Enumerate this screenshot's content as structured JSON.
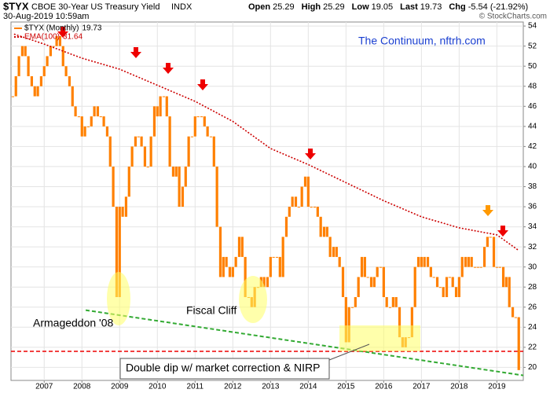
{
  "header": {
    "symbol": "$TYX",
    "name": "CBOE 30-Year US Treasury Yield",
    "exchange": "INDX",
    "date": "30-Aug-2019 10:59am",
    "stats": [
      {
        "label": "Open",
        "value": "25.29"
      },
      {
        "label": "High",
        "value": "25.29"
      },
      {
        "label": "Low",
        "value": "19.05"
      },
      {
        "label": "Last",
        "value": "19.73"
      },
      {
        "label": "Chg",
        "value": "-5.54 (-21.92%)"
      }
    ],
    "source": "© StockCharts.com"
  },
  "chart_data": {
    "type": "bar",
    "annotations": [
      "The Continuum, nftrh.com",
      "Armageddon '08",
      "Fiscal Cliff",
      "Double dip w/ market correction & NIRP"
    ],
    "xlim": [
      2006.12,
      2019.7
    ],
    "xticks": [
      2007,
      2008,
      2009,
      2010,
      2011,
      2012,
      2013,
      2014,
      2015,
      2016,
      2017,
      2018,
      2019
    ],
    "ylim": [
      18.7,
      54.4
    ],
    "yticks": [
      20,
      22,
      24,
      26,
      28,
      30,
      32,
      34,
      36,
      38,
      40,
      42,
      44,
      46,
      48,
      50,
      52,
      54
    ],
    "grid": true,
    "series": [
      {
        "name": "$TYX (Monthly)",
        "color": "#ff8000",
        "x": [
          2006.17,
          2006.25,
          2006.33,
          2006.42,
          2006.5,
          2006.58,
          2006.67,
          2006.75,
          2006.83,
          2006.92,
          2007.0,
          2007.08,
          2007.17,
          2007.25,
          2007.33,
          2007.42,
          2007.5,
          2007.58,
          2007.67,
          2007.75,
          2007.83,
          2007.92,
          2008.0,
          2008.08,
          2008.17,
          2008.25,
          2008.33,
          2008.42,
          2008.5,
          2008.58,
          2008.67,
          2008.75,
          2008.83,
          2008.92,
          2009.0,
          2009.08,
          2009.17,
          2009.25,
          2009.33,
          2009.42,
          2009.5,
          2009.58,
          2009.67,
          2009.75,
          2009.83,
          2009.92,
          2010.0,
          2010.08,
          2010.17,
          2010.25,
          2010.33,
          2010.42,
          2010.5,
          2010.58,
          2010.67,
          2010.75,
          2010.83,
          2010.92,
          2011.0,
          2011.08,
          2011.17,
          2011.25,
          2011.33,
          2011.42,
          2011.5,
          2011.58,
          2011.67,
          2011.75,
          2011.83,
          2011.92,
          2012.0,
          2012.08,
          2012.17,
          2012.25,
          2012.33,
          2012.42,
          2012.5,
          2012.58,
          2012.67,
          2012.75,
          2012.83,
          2012.92,
          2013.0,
          2013.08,
          2013.17,
          2013.25,
          2013.33,
          2013.42,
          2013.5,
          2013.58,
          2013.67,
          2013.75,
          2013.83,
          2013.92,
          2014.0,
          2014.08,
          2014.17,
          2014.25,
          2014.33,
          2014.42,
          2014.5,
          2014.58,
          2014.67,
          2014.75,
          2014.83,
          2014.92,
          2015.0,
          2015.08,
          2015.17,
          2015.25,
          2015.33,
          2015.42,
          2015.5,
          2015.58,
          2015.67,
          2015.75,
          2015.83,
          2015.92,
          2016.0,
          2016.08,
          2016.17,
          2016.25,
          2016.33,
          2016.42,
          2016.5,
          2016.58,
          2016.67,
          2016.75,
          2016.83,
          2016.92,
          2017.0,
          2017.08,
          2017.17,
          2017.25,
          2017.33,
          2017.42,
          2017.5,
          2017.58,
          2017.67,
          2017.75,
          2017.83,
          2017.92,
          2018.0,
          2018.08,
          2018.17,
          2018.25,
          2018.33,
          2018.42,
          2018.5,
          2018.58,
          2018.67,
          2018.75,
          2018.83,
          2018.92,
          2019.0,
          2019.08,
          2019.17,
          2019.25,
          2019.33,
          2019.42,
          2019.5,
          2019.58
        ],
        "values": [
          47,
          49,
          51,
          52,
          51,
          49,
          48,
          47,
          48,
          49,
          50,
          51,
          52,
          52,
          53,
          52,
          50,
          49,
          48,
          46,
          45,
          45,
          43,
          44,
          44,
          45,
          46,
          45,
          45,
          44,
          43,
          40,
          36,
          27,
          36,
          35,
          37,
          40,
          42,
          43,
          43,
          42,
          40,
          40,
          43,
          46,
          45,
          47,
          47,
          45,
          40,
          39,
          40,
          36,
          38,
          40,
          43,
          43,
          45,
          45,
          45,
          44,
          43,
          43,
          40,
          34,
          29,
          31,
          30,
          29,
          30,
          31,
          33,
          31,
          27,
          27,
          26,
          28,
          28,
          29,
          28,
          29,
          31,
          31,
          31,
          29,
          33,
          35,
          36,
          37,
          36,
          36,
          38,
          39,
          36,
          36,
          36,
          35,
          33,
          34,
          33,
          31,
          32,
          31,
          30,
          27,
          22.5,
          26,
          26,
          27,
          29,
          31,
          29,
          29,
          28,
          29,
          30,
          30,
          27,
          26,
          26,
          27,
          26,
          23,
          22,
          23,
          23,
          26,
          30,
          31,
          30,
          31,
          30,
          29,
          29,
          28,
          28,
          27,
          29,
          29,
          28,
          27,
          29,
          31,
          30,
          31,
          30,
          30,
          30,
          30,
          32,
          33,
          33,
          30,
          30,
          30,
          28,
          29,
          26,
          25,
          25,
          19.73
        ]
      },
      {
        "name": "EMA(100)",
        "color": "#cc0000",
        "x": [
          2006.2,
          2007,
          2008,
          2009,
          2010,
          2011,
          2012,
          2013,
          2014,
          2015,
          2016,
          2017,
          2018,
          2019,
          2019.58
        ],
        "values": [
          53.2,
          52.2,
          50.8,
          49.7,
          48.1,
          46.5,
          44.5,
          41.8,
          40.2,
          38.4,
          36.6,
          35,
          33.9,
          33.2,
          31.64
        ]
      }
    ],
    "support": 21.6,
    "trendline": {
      "x": [
        2008.1,
        2019.7
      ],
      "values": [
        25.7,
        19.2
      ]
    }
  }
}
